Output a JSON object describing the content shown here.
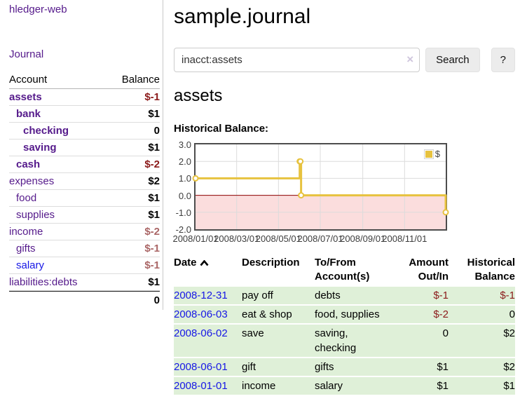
{
  "app": {
    "title": "hledger-web"
  },
  "colors": {
    "purple": "#551A8B",
    "blue": "#1717e6",
    "neg_strong": "#8b1a1a",
    "neg_muted": "#aa6666",
    "row_green": "#dff0d8",
    "gold": "#e7c23f",
    "pink": "#fbdddd",
    "zero_red": "#8b0000",
    "btn_bg": "#ececec",
    "plot_border": "#4d4d4d",
    "grid": "#dcdcdc"
  },
  "sidebar": {
    "journal_label": "Journal",
    "headers": {
      "account": "Account",
      "balance": "Balance"
    },
    "accounts": [
      {
        "name": "assets",
        "balance": "$-1",
        "level": 0,
        "selected": true,
        "balance_style": "neg"
      },
      {
        "name": "bank",
        "balance": "$1",
        "level": 1,
        "selected": true,
        "balance_style": "pos"
      },
      {
        "name": "checking",
        "balance": "0",
        "level": 2,
        "selected": true,
        "balance_style": "pos"
      },
      {
        "name": "saving",
        "balance": "$1",
        "level": 2,
        "selected": true,
        "balance_style": "pos"
      },
      {
        "name": "cash",
        "balance": "$-2",
        "level": 1,
        "selected": true,
        "balance_style": "neg"
      },
      {
        "name": "expenses",
        "balance": "$2",
        "level": 0,
        "selected": false,
        "balance_style": "pos"
      },
      {
        "name": "food",
        "balance": "$1",
        "level": 1,
        "selected": false,
        "balance_style": "pos"
      },
      {
        "name": "supplies",
        "balance": "$1",
        "level": 1,
        "selected": false,
        "balance_style": "pos"
      },
      {
        "name": "income",
        "balance": "$-2",
        "level": 0,
        "selected": false,
        "balance_style": "neg-muted"
      },
      {
        "name": "gifts",
        "balance": "$-1",
        "level": 1,
        "selected": false,
        "balance_style": "neg-muted"
      },
      {
        "name": "salary",
        "balance": "$-1",
        "level": 1,
        "selected": false,
        "balance_style": "neg-muted",
        "link_state": "unvisited"
      },
      {
        "name": "liabilities:debts",
        "balance": "$1",
        "level": 0,
        "selected": false,
        "balance_style": "pos"
      }
    ],
    "total": "0"
  },
  "main": {
    "title": "sample.journal",
    "search": {
      "value": "inacct:assets",
      "clear_icon": "×",
      "button": "Search",
      "help_button": "?"
    },
    "account_heading": "assets",
    "chart_label": "Historical Balance:"
  },
  "chart_data": {
    "type": "line",
    "title": "Historical Balance",
    "step": true,
    "series": [
      {
        "name": "$",
        "points": [
          [
            "2008-01-01",
            1.0
          ],
          [
            "2008-06-01",
            2.0
          ],
          [
            "2008-06-02",
            2.0
          ],
          [
            "2008-06-03",
            0.0
          ],
          [
            "2008-12-31",
            -1.0
          ]
        ]
      }
    ],
    "x_range": [
      "2008-01-01",
      "2008-12-31"
    ],
    "ylim": [
      -2.0,
      3.0
    ],
    "y_ticks": [
      3.0,
      2.0,
      1.0,
      0.0,
      -1.0,
      -2.0
    ],
    "x_ticks": [
      {
        "label": "2008/01/01",
        "date": "2008-01-01"
      },
      {
        "label": "2008/03/01",
        "date": "2008-03-01"
      },
      {
        "label": "2008/05/01",
        "date": "2008-05-01"
      },
      {
        "label": "2008/07/01",
        "date": "2008-07-01"
      },
      {
        "label": "2008/09/01",
        "date": "2008-09-01"
      },
      {
        "label": "2008/11/01",
        "date": "2008-11-01"
      }
    ],
    "legend": {
      "label": "$",
      "position": "top-right"
    },
    "grid": true,
    "negative_region_shaded": true
  },
  "transactions": {
    "headers": [
      {
        "label": "Date",
        "sort": "ascending"
      },
      {
        "label": "Description"
      },
      {
        "label": "To/From\nAccount(s)"
      },
      {
        "label": "Amount\nOut/In",
        "align": "right"
      },
      {
        "label": "Historical\nBalance",
        "align": "right"
      }
    ],
    "rows": [
      {
        "date": "2008-12-31",
        "description": "pay off",
        "accounts": "debts",
        "amount": "$-1",
        "balance": "$-1"
      },
      {
        "date": "2008-06-03",
        "description": "eat & shop",
        "accounts": "food, supplies",
        "amount": "$-2",
        "balance": "0"
      },
      {
        "date": "2008-06-02",
        "description": "save",
        "accounts": "saving,\nchecking",
        "amount": "0",
        "balance": "$2"
      },
      {
        "date": "2008-06-01",
        "description": "gift",
        "accounts": "gifts",
        "amount": "$1",
        "balance": "$2"
      },
      {
        "date": "2008-01-01",
        "description": "income",
        "accounts": "salary",
        "amount": "$1",
        "balance": "$1"
      }
    ]
  }
}
